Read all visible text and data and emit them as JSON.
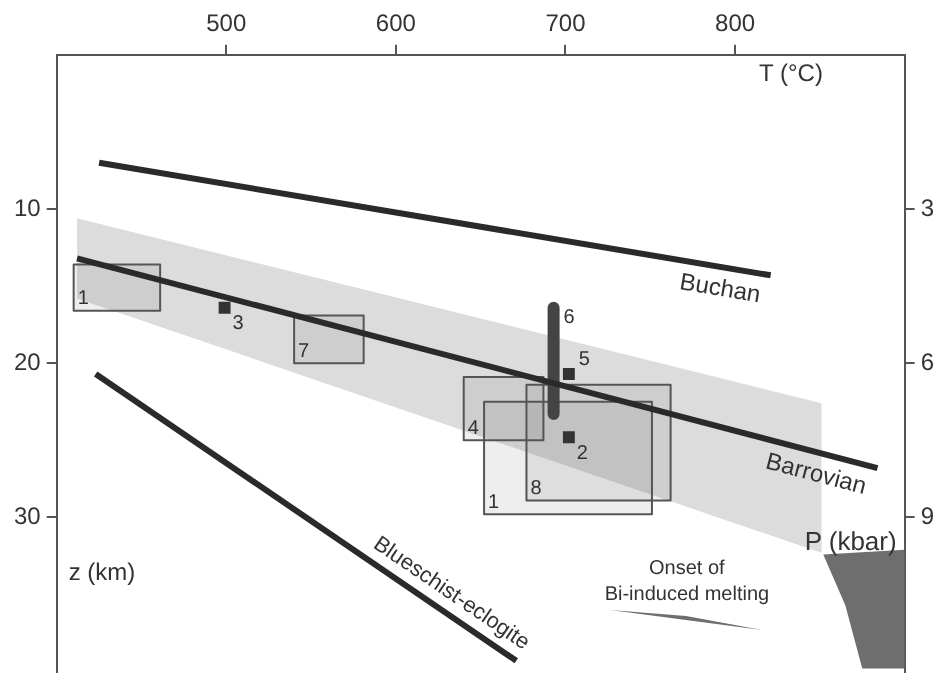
{
  "chart_data": {
    "type": "line",
    "xlabel": "T (°C)",
    "ylabel": "z (km)",
    "y2label": "P (kbar)",
    "xlim": [
      400,
      900
    ],
    "xticks": [
      500,
      600,
      700,
      800
    ],
    "ylim": [
      40,
      0
    ],
    "yticks": [
      10,
      20,
      30
    ],
    "y2lim": [
      12,
      0
    ],
    "y2ticks": [
      3,
      6,
      9
    ],
    "grid": false,
    "legend": "bottom right",
    "marker": "none",
    "series": [
      {
        "type": "area",
        "color": "#dcdcdc",
        "x": [
          412,
          851
        ],
        "values": [
          null,
          null
        ],
        "lower": [
          10.6,
          22.6
        ],
        "upper": [
          15.8,
          32.3
        ]
      },
      {
        "name": "Buchan",
        "color": "#2a2a2a",
        "x": [
          425,
          821
        ],
        "values": [
          7.0,
          14.3
        ]
      },
      {
        "name": "Barrovian",
        "color": "#2a2a2a",
        "x": [
          412,
          884
        ],
        "values": [
          13.2,
          26.8
        ]
      },
      {
        "name": "Blueschist-eclogite",
        "color": "#2a2a2a",
        "x": [
          423,
          671
        ],
        "values": [
          20.7,
          39.3
        ]
      },
      {
        "name": "1",
        "color": "#555555",
        "x": [
          410,
          461
        ],
        "values": [
          null,
          null
        ],
        "lower": [
          13.6,
          13.6
        ],
        "upper": [
          16.6,
          16.6
        ]
      },
      {
        "name": "7",
        "color": "#555555",
        "x": [
          540,
          581
        ],
        "values": [
          null,
          null
        ],
        "lower": [
          16.9,
          16.9
        ],
        "upper": [
          20.0,
          20.0
        ]
      },
      {
        "name": "4",
        "color": "#555555",
        "x": [
          640,
          687
        ],
        "values": [
          null,
          null
        ],
        "lower": [
          20.9,
          20.9
        ],
        "upper": [
          25.0,
          25.0
        ]
      },
      {
        "name": "8",
        "color": "#555555",
        "x": [
          677,
          762
        ],
        "values": [
          null,
          null
        ],
        "lower": [
          21.4,
          21.4
        ],
        "upper": [
          28.9,
          28.9
        ]
      },
      {
        "name": "1",
        "color": "#555555",
        "x": [
          652,
          751
        ],
        "values": [
          null,
          null
        ],
        "lower": [
          22.5,
          22.5
        ],
        "upper": [
          29.8,
          29.8
        ]
      },
      {
        "name": "6",
        "color": "#444444",
        "x": [
          693,
          693
        ],
        "values": [
          16.4,
          23.3
        ]
      },
      {
        "type": "scatter",
        "name": "3",
        "color": "#333333",
        "marker": "square",
        "x": [
          499
        ],
        "values": [
          16.4
        ]
      },
      {
        "type": "scatter",
        "name": "5",
        "color": "#333333",
        "marker": "square",
        "x": [
          702
        ],
        "values": [
          20.7
        ]
      },
      {
        "type": "scatter",
        "name": "2",
        "color": "#333333",
        "marker": "square",
        "x": [
          702
        ],
        "values": [
          24.8
        ]
      },
      {
        "type": "area",
        "name": "Onset of Bi-induced melting",
        "color": "#6e6e6e",
        "x": [
          852,
          900,
          900,
          875,
          865
        ],
        "values": [
          32.4,
          32.1,
          39.8,
          39.8,
          35.7
        ]
      }
    ]
  }
}
